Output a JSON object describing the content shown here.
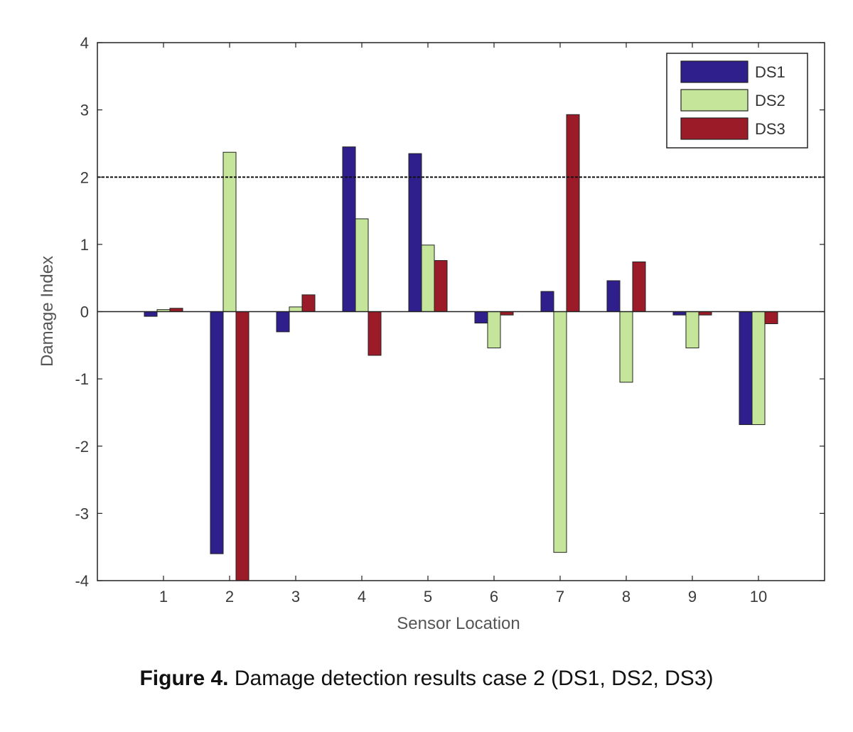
{
  "caption": {
    "label": "Figure 4.",
    "text": " Damage detection results case 2 (DS1, DS2, DS3)"
  },
  "chart_data": {
    "type": "bar",
    "title": "",
    "xlabel": "Sensor Location",
    "ylabel": "Damage Index",
    "categories": [
      "1",
      "2",
      "3",
      "4",
      "5",
      "6",
      "7",
      "8",
      "9",
      "10"
    ],
    "ylim": [
      -4,
      4
    ],
    "yticks": [
      "-4",
      "-3",
      "-2",
      "-1",
      "0",
      "1",
      "2",
      "3",
      "4"
    ],
    "threshold": 2,
    "grid": false,
    "legend_position": "top-right",
    "series": [
      {
        "name": "DS1",
        "color": "#2e1f8c",
        "values": [
          -0.07,
          -3.6,
          -0.3,
          2.45,
          2.35,
          -0.17,
          0.3,
          0.46,
          -0.05,
          -1.68
        ]
      },
      {
        "name": "DS2",
        "color": "#c5e69a",
        "values": [
          0.03,
          2.37,
          0.07,
          1.38,
          0.99,
          -0.54,
          -3.58,
          -1.05,
          -0.54,
          -1.68
        ]
      },
      {
        "name": "DS3",
        "color": "#9b1c28",
        "values": [
          0.05,
          -4.0,
          0.25,
          -0.65,
          0.76,
          -0.05,
          2.93,
          0.74,
          -0.05,
          -0.18
        ]
      }
    ]
  }
}
